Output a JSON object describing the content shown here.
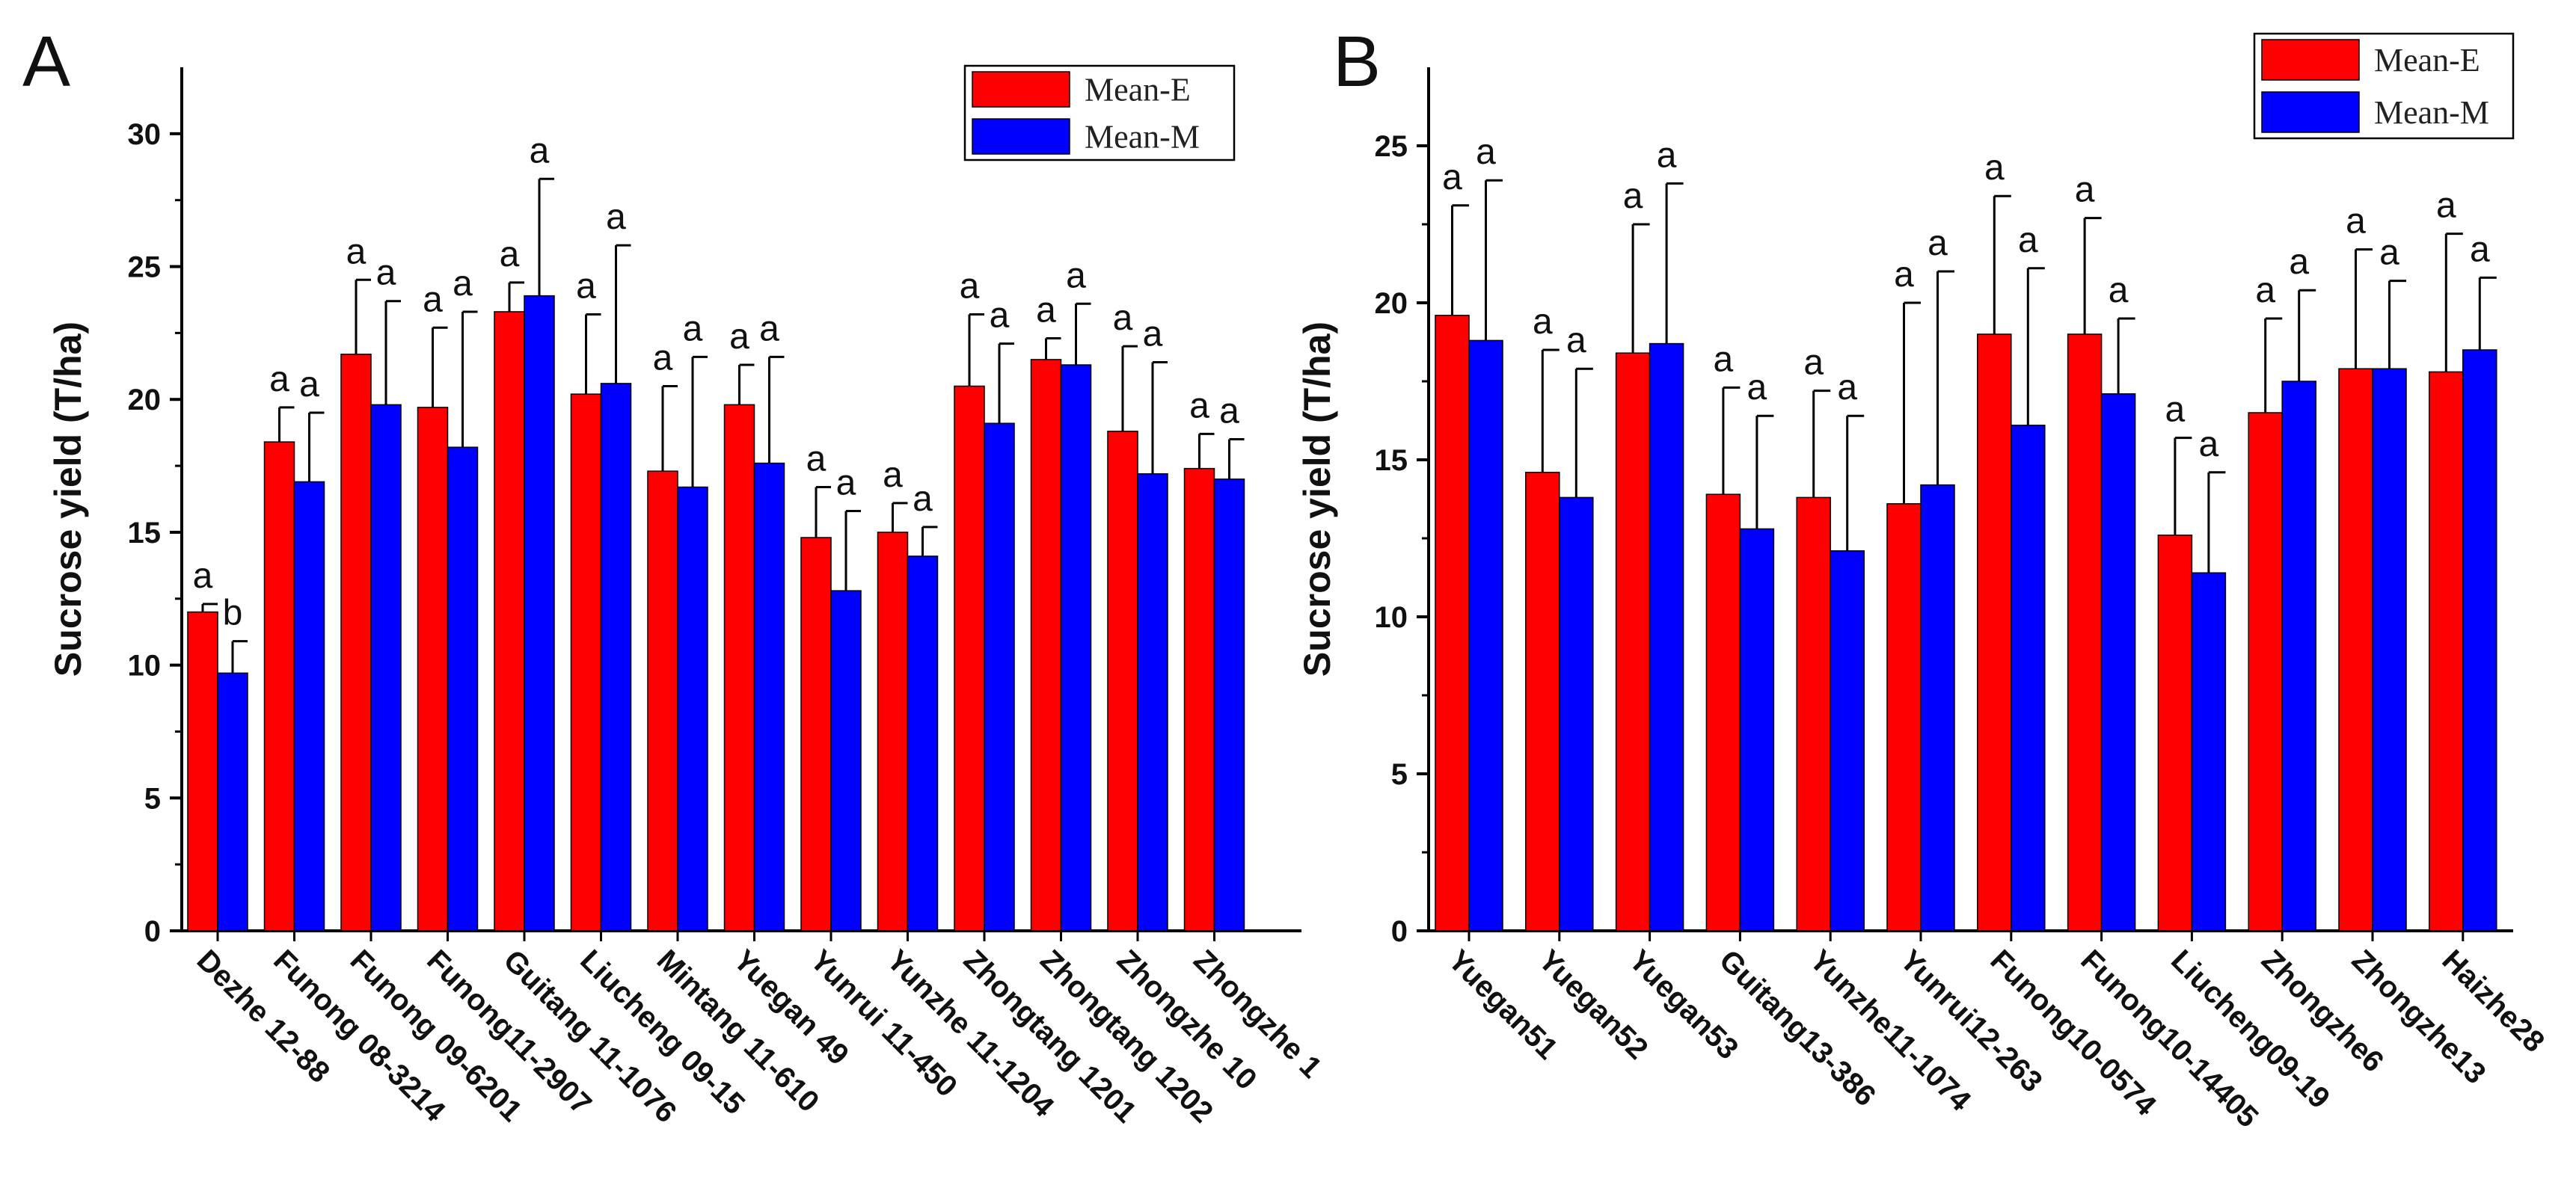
{
  "colors": {
    "series_e": "#ff0000",
    "series_m": "#0000ff",
    "axis": "#000000"
  },
  "chart_data": [
    {
      "panel": "A",
      "type": "bar",
      "ylabel": "Sucrose yield (T/ha)",
      "xlabel": "",
      "ylim": [
        0,
        32.5
      ],
      "yticks": [
        0,
        5,
        10,
        15,
        20,
        25,
        30
      ],
      "legend_position": "top-right",
      "categories": [
        "Dezhe 12-88",
        "Funong 08-3214",
        "Funong 09-6201",
        "Funong11-2907",
        "Guitang 11-1076",
        "Liucheng 09-15",
        "Mintang 11-610",
        "Yuegan 49",
        "Yunrui 11-450",
        "Yunzhe 11-1204",
        "Zhongtang 1201",
        "Zhongtang 1202",
        "Zhongzhe 10",
        "Zhongzhe 1"
      ],
      "series": [
        {
          "name": "Mean-E",
          "values": [
            12.0,
            18.4,
            21.7,
            19.7,
            23.3,
            20.2,
            17.3,
            19.8,
            14.8,
            15.0,
            20.5,
            21.5,
            18.8,
            17.4
          ],
          "errors": [
            0.3,
            1.3,
            2.8,
            3.0,
            1.1,
            3.0,
            3.2,
            1.5,
            1.9,
            1.1,
            2.7,
            0.8,
            3.2,
            1.3
          ],
          "sig": [
            "a",
            "a",
            "a",
            "a",
            "a",
            "a",
            "a",
            "a",
            "a",
            "a",
            "a",
            "a",
            "a",
            "a"
          ]
        },
        {
          "name": "Mean-M",
          "values": [
            9.7,
            16.9,
            19.8,
            18.2,
            23.9,
            20.6,
            16.7,
            17.6,
            12.8,
            14.1,
            19.1,
            21.3,
            17.2,
            17.0
          ],
          "errors": [
            1.2,
            2.6,
            3.9,
            5.1,
            4.4,
            5.2,
            4.9,
            4.0,
            3.0,
            1.1,
            3.0,
            2.3,
            4.2,
            1.5
          ],
          "sig": [
            "b",
            "a",
            "a",
            "a",
            "a",
            "a",
            "a",
            "a",
            "a",
            "a",
            "a",
            "a",
            "a",
            "a"
          ]
        }
      ]
    },
    {
      "panel": "B",
      "type": "bar",
      "ylabel": "Sucrose yield (T/ha)",
      "xlabel": "",
      "ylim": [
        0,
        27.5
      ],
      "yticks": [
        0,
        5,
        10,
        15,
        20,
        25
      ],
      "legend_position": "top-right",
      "categories": [
        "Yuegan51",
        "Yuegan52",
        "Yuegan53",
        "Guitang13-386",
        "Yunzhe11-1074",
        "Yunrui12-263",
        "Funong10-0574",
        "Funong10-14405",
        "Liucheng09-19",
        "Zhongzhe6",
        "Zhongzhe13",
        "Haizhe28"
      ],
      "series": [
        {
          "name": "Mean-E",
          "values": [
            19.6,
            14.6,
            18.4,
            13.9,
            13.8,
            13.6,
            19.0,
            19.0,
            12.6,
            16.5,
            17.9,
            17.8
          ],
          "errors": [
            3.5,
            3.9,
            4.1,
            3.4,
            3.4,
            6.4,
            4.4,
            3.7,
            3.1,
            3.0,
            3.8,
            4.4
          ],
          "sig": [
            "a",
            "a",
            "a",
            "a",
            "a",
            "a",
            "a",
            "a",
            "a",
            "a",
            "a",
            "a"
          ]
        },
        {
          "name": "Mean-M",
          "values": [
            18.8,
            13.8,
            18.7,
            12.8,
            12.1,
            14.2,
            16.1,
            17.1,
            11.4,
            17.5,
            17.9,
            18.5
          ],
          "errors": [
            5.1,
            4.1,
            5.1,
            3.6,
            4.3,
            6.8,
            5.0,
            2.4,
            3.2,
            2.9,
            2.8,
            2.3
          ],
          "sig": [
            "a",
            "a",
            "a",
            "a",
            "a",
            "a",
            "a",
            "a",
            "a",
            "a",
            "a",
            "a"
          ]
        }
      ]
    }
  ]
}
